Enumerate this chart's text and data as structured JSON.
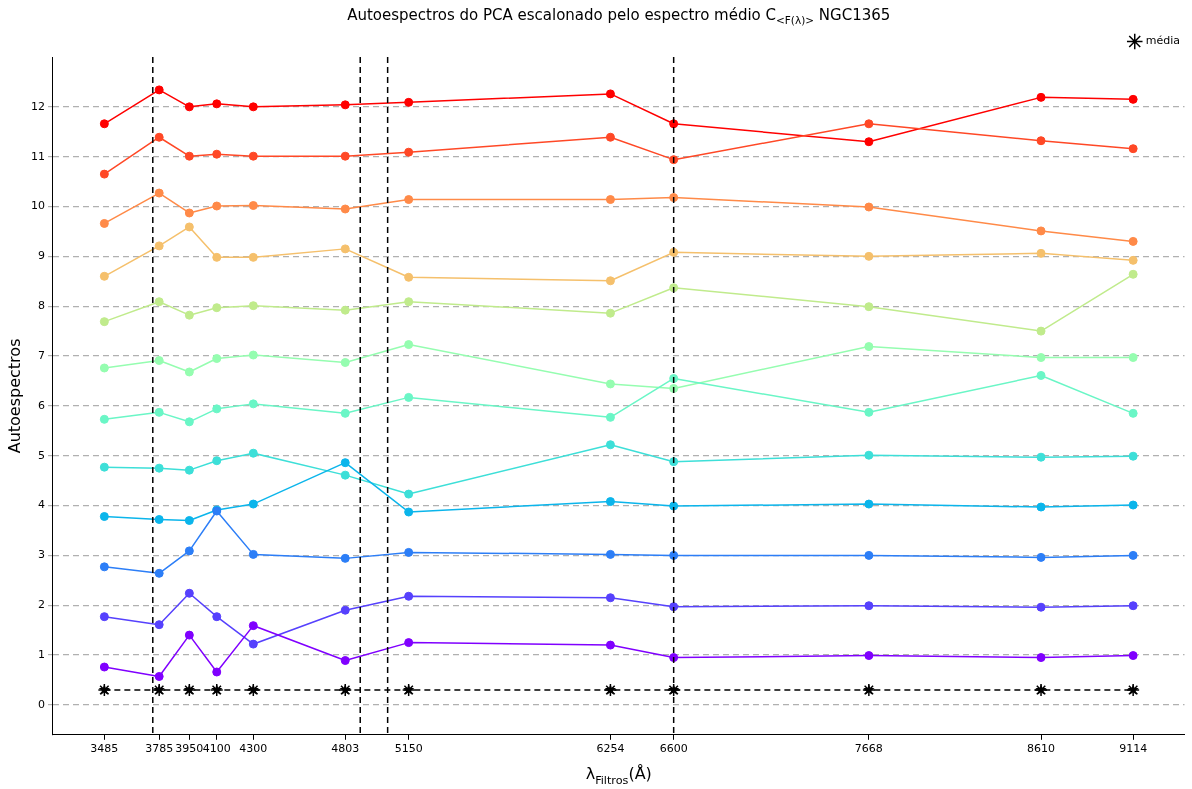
{
  "chart_data": {
    "type": "line",
    "title": "Autoespectros do PCA escalonado pelo espectro médio C$_{<F(λ)>}$ NGC1365",
    "xlabel": "λ$_{Filtros}$(Å)",
    "ylabel": "Autoespectros",
    "x": [
      3485,
      3785,
      3950,
      4100,
      4300,
      4803,
      5150,
      6254,
      6600,
      7668,
      8610,
      9114
    ],
    "xlim": [
      3204,
      9395
    ],
    "xticks": [
      3485,
      3785,
      3950,
      4100,
      4300,
      4803,
      5150,
      6254,
      6600,
      7668,
      8610,
      9114
    ],
    "ylim": [
      -0.6,
      13
    ],
    "yticks": [
      0,
      1,
      2,
      3,
      4,
      5,
      6,
      7,
      8,
      9,
      10,
      11,
      12
    ],
    "grid": "y",
    "legend": "top right",
    "marker": "circle",
    "line_style": "solid",
    "series": [
      {
        "color": "#8000ff",
        "values": [
          0.76,
          0.57,
          1.4,
          0.66,
          1.59,
          0.89,
          1.25,
          1.2,
          0.95,
          0.99,
          0.95,
          0.99
        ]
      },
      {
        "color": "#5641fd",
        "values": [
          1.77,
          1.61,
          2.24,
          1.77,
          1.22,
          1.9,
          2.18,
          2.15,
          1.97,
          1.99,
          1.96,
          1.99
        ]
      },
      {
        "color": "#2c7ef7",
        "values": [
          2.77,
          2.64,
          3.09,
          3.89,
          3.02,
          2.94,
          3.06,
          3.02,
          3.0,
          3.0,
          2.96,
          3.0
        ]
      },
      {
        "color": "#0bb5eb",
        "values": [
          3.78,
          3.72,
          3.7,
          3.91,
          4.03,
          4.86,
          3.87,
          4.08,
          3.99,
          4.03,
          3.97,
          4.01
        ]
      },
      {
        "color": "#3ddfd8",
        "values": [
          4.77,
          4.75,
          4.71,
          4.9,
          5.05,
          4.61,
          4.23,
          5.22,
          4.88,
          5.01,
          4.97,
          4.99
        ]
      },
      {
        "color": "#6af6c6",
        "values": [
          5.73,
          5.87,
          5.68,
          5.94,
          6.04,
          5.85,
          6.17,
          5.77,
          6.55,
          5.87,
          6.61,
          5.85
        ]
      },
      {
        "color": "#95fdb0",
        "values": [
          6.76,
          6.91,
          6.68,
          6.95,
          7.02,
          6.87,
          7.23,
          6.44,
          6.35,
          7.19,
          6.97,
          6.97
        ]
      },
      {
        "color": "#c0eb8c",
        "values": [
          7.69,
          8.09,
          7.82,
          7.97,
          8.01,
          7.92,
          8.09,
          7.86,
          8.37,
          7.99,
          7.5,
          8.64
        ]
      },
      {
        "color": "#f5c06c",
        "values": [
          8.6,
          9.21,
          9.59,
          8.98,
          8.98,
          9.15,
          8.58,
          8.51,
          9.08,
          9.0,
          9.06,
          8.92
        ]
      },
      {
        "color": "#ff8a48",
        "values": [
          9.66,
          10.27,
          9.87,
          10.01,
          10.02,
          9.95,
          10.14,
          10.14,
          10.18,
          9.99,
          9.51,
          9.3
        ]
      },
      {
        "color": "#ff4826",
        "values": [
          10.65,
          11.39,
          11.01,
          11.05,
          11.01,
          11.01,
          11.09,
          11.39,
          10.94,
          11.66,
          11.32,
          11.16
        ]
      },
      {
        "color": "#ff0000",
        "values": [
          11.66,
          12.34,
          12.0,
          12.06,
          12.0,
          12.04,
          12.09,
          12.26,
          11.66,
          11.3,
          12.19,
          12.15
        ]
      },
      {
        "name": "média",
        "color": "#000000",
        "marker": "star",
        "line_style": "dashed",
        "values": [
          0.3,
          0.3,
          0.3,
          0.3,
          0.3,
          0.3,
          0.3,
          0.3,
          0.3,
          0.3,
          0.3,
          0.3
        ]
      }
    ],
    "ref_lines": [
      {
        "axis": "x",
        "value": 3750,
        "color": "#000000",
        "line_style": "dashed"
      },
      {
        "axis": "x",
        "value": 4885,
        "color": "#000000",
        "line_style": "dashed"
      },
      {
        "axis": "x",
        "value": 5035,
        "color": "#000000",
        "line_style": "dashed"
      },
      {
        "axis": "x",
        "value": 6600,
        "color": "#000000",
        "line_style": "dashed"
      }
    ]
  }
}
